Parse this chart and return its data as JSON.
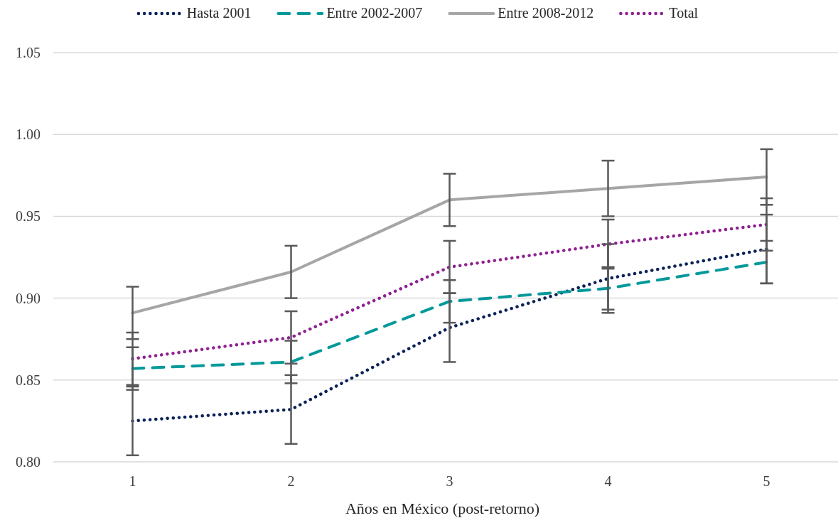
{
  "chart_data": {
    "type": "line",
    "xlabel": "Años en México (post-retorno)",
    "categories": [
      "1",
      "2",
      "3",
      "4",
      "5"
    ],
    "ylim": [
      0.8,
      1.05
    ],
    "yticks": [
      {
        "value": 0.8,
        "label": "0.80"
      },
      {
        "value": 0.85,
        "label": "0.85"
      },
      {
        "value": 0.9,
        "label": "0.90"
      },
      {
        "value": 0.95,
        "label": "0.95"
      },
      {
        "value": 1.0,
        "label": "1.00"
      },
      {
        "value": 1.05,
        "label": "1.05"
      }
    ],
    "grid": "y",
    "legend": "top",
    "marker": "none",
    "series": [
      {
        "name": "Hasta 2001",
        "color": "#0b2158",
        "line_style": "dotted",
        "values": [
          0.825,
          0.832,
          0.882,
          0.912,
          0.93
        ],
        "errors": [
          0.021,
          0.021,
          0.021,
          0.021,
          0.021
        ]
      },
      {
        "name": "Entre 2002-2007",
        "color": "#03999a",
        "line_style": "dashed",
        "values": [
          0.857,
          0.861,
          0.898,
          0.906,
          0.922
        ],
        "errors": [
          0.013,
          0.013,
          0.013,
          0.013,
          0.013
        ]
      },
      {
        "name": "Entre 2008-2012",
        "color": "#a6a6a6",
        "line_style": "solid",
        "values": [
          0.891,
          0.916,
          0.96,
          0.967,
          0.974
        ],
        "errors": [
          0.016,
          0.016,
          0.016,
          0.017,
          0.017
        ]
      },
      {
        "name": "Total",
        "color": "#8e2291",
        "line_style": "dotted",
        "values": [
          0.863,
          0.876,
          0.919,
          0.933,
          0.945
        ],
        "errors": [
          0.016,
          0.016,
          0.016,
          0.015,
          0.016
        ]
      }
    ]
  }
}
